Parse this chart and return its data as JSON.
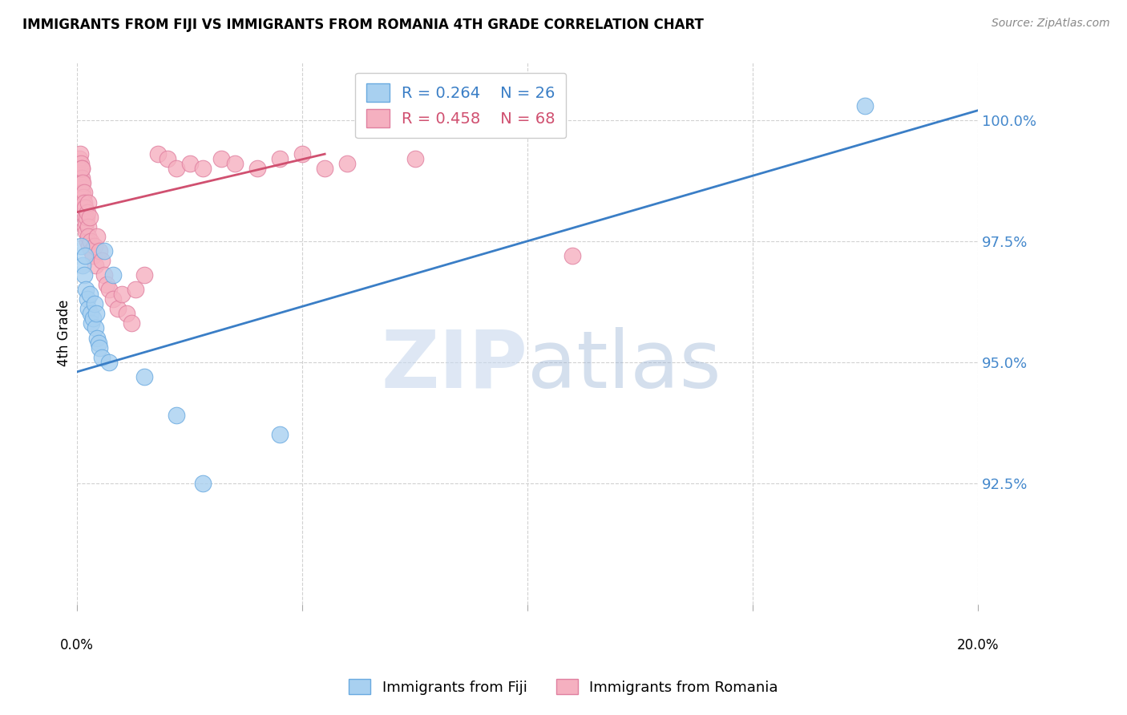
{
  "title": "IMMIGRANTS FROM FIJI VS IMMIGRANTS FROM ROMANIA 4TH GRADE CORRELATION CHART",
  "source": "Source: ZipAtlas.com",
  "ylabel": "4th Grade",
  "xlim": [
    0.0,
    20.0
  ],
  "ylim": [
    90.0,
    101.2
  ],
  "yticks": [
    92.5,
    95.0,
    97.5,
    100.0
  ],
  "ytick_labels": [
    "92.5%",
    "95.0%",
    "97.5%",
    "100.0%"
  ],
  "fiji_color": "#A8D0F0",
  "fiji_edge_color": "#6AAAE0",
  "romania_color": "#F5B0C0",
  "romania_edge_color": "#E080A0",
  "fiji_R": 0.264,
  "fiji_N": 26,
  "romania_R": 0.458,
  "romania_N": 68,
  "legend_fiji_label": "R = 0.264    N = 26",
  "legend_romania_label": "R = 0.458    N = 68",
  "watermark_zip": "ZIP",
  "watermark_atlas": "atlas",
  "fiji_x": [
    0.08,
    0.12,
    0.15,
    0.18,
    0.2,
    0.22,
    0.25,
    0.28,
    0.3,
    0.32,
    0.35,
    0.38,
    0.4,
    0.42,
    0.45,
    0.48,
    0.5,
    0.55,
    0.6,
    0.7,
    0.8,
    1.5,
    2.2,
    2.8,
    4.5,
    17.5
  ],
  "fiji_y": [
    97.4,
    97.0,
    96.8,
    97.2,
    96.5,
    96.3,
    96.1,
    96.4,
    96.0,
    95.8,
    95.9,
    96.2,
    95.7,
    96.0,
    95.5,
    95.4,
    95.3,
    95.1,
    97.3,
    95.0,
    96.8,
    94.7,
    93.9,
    92.5,
    93.5,
    100.3
  ],
  "romania_x": [
    0.02,
    0.03,
    0.04,
    0.04,
    0.05,
    0.05,
    0.06,
    0.07,
    0.07,
    0.08,
    0.08,
    0.09,
    0.1,
    0.1,
    0.11,
    0.11,
    0.12,
    0.13,
    0.13,
    0.14,
    0.15,
    0.15,
    0.16,
    0.17,
    0.18,
    0.18,
    0.19,
    0.2,
    0.21,
    0.22,
    0.23,
    0.24,
    0.25,
    0.25,
    0.27,
    0.28,
    0.3,
    0.32,
    0.35,
    0.38,
    0.4,
    0.45,
    0.5,
    0.55,
    0.6,
    0.65,
    0.7,
    0.8,
    0.9,
    1.0,
    1.1,
    1.2,
    1.3,
    1.5,
    1.8,
    2.0,
    2.2,
    2.5,
    2.8,
    3.2,
    3.5,
    4.0,
    4.5,
    5.0,
    5.5,
    6.0,
    7.5,
    11.0
  ],
  "romania_y": [
    99.1,
    98.9,
    99.0,
    98.7,
    99.2,
    98.5,
    99.0,
    98.8,
    99.3,
    98.6,
    99.1,
    98.4,
    99.0,
    98.8,
    98.7,
    99.0,
    98.5,
    98.3,
    98.7,
    98.4,
    98.2,
    98.5,
    98.3,
    98.0,
    97.8,
    98.2,
    97.7,
    97.9,
    98.0,
    97.5,
    98.1,
    97.8,
    97.6,
    98.3,
    97.4,
    98.0,
    97.5,
    97.3,
    97.2,
    97.4,
    97.0,
    97.6,
    97.3,
    97.1,
    96.8,
    96.6,
    96.5,
    96.3,
    96.1,
    96.4,
    96.0,
    95.8,
    96.5,
    96.8,
    99.3,
    99.2,
    99.0,
    99.1,
    99.0,
    99.2,
    99.1,
    99.0,
    99.2,
    99.3,
    99.0,
    99.1,
    99.2,
    97.2
  ],
  "fiji_line_x0": 0.0,
  "fiji_line_y0": 94.8,
  "fiji_line_x1": 20.0,
  "fiji_line_y1": 100.2,
  "romania_line_x0": 0.0,
  "romania_line_y0": 98.1,
  "romania_line_x1": 5.5,
  "romania_line_y1": 99.3
}
